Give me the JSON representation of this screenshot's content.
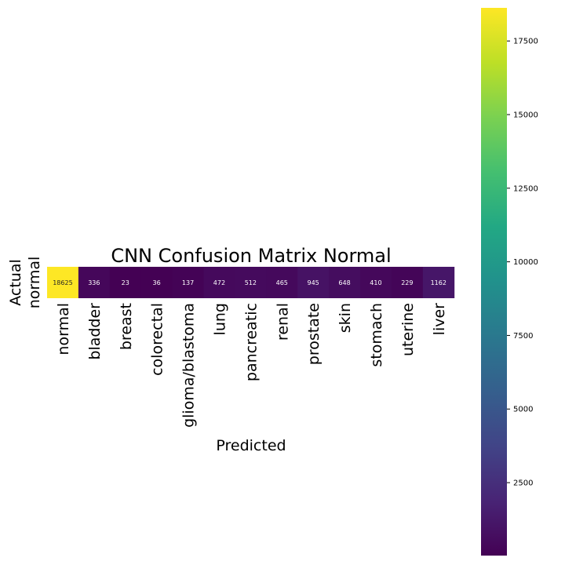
{
  "chart_data": {
    "type": "heatmap",
    "title": "CNN Confusion Matrix Normal",
    "xlabel": "Predicted",
    "ylabel": "Actual",
    "rows": [
      "normal"
    ],
    "columns": [
      "normal",
      "bladder",
      "breast",
      "colorectal",
      "glioma/blastoma",
      "lung",
      "pancreatic",
      "renal",
      "prostate",
      "skin",
      "stomach",
      "uterine",
      "liver"
    ],
    "values": [
      [
        18625,
        336,
        23,
        36,
        137,
        472,
        512,
        465,
        945,
        648,
        410,
        229,
        1162
      ]
    ],
    "colormap": "viridis",
    "colorbar": {
      "range": [
        23,
        18625
      ],
      "ticks": [
        2500,
        5000,
        7500,
        10000,
        12500,
        15000,
        17500
      ],
      "tick_labels": [
        "2500",
        "5000",
        "7500",
        "10000",
        "12500",
        "15000",
        "17500"
      ]
    }
  }
}
